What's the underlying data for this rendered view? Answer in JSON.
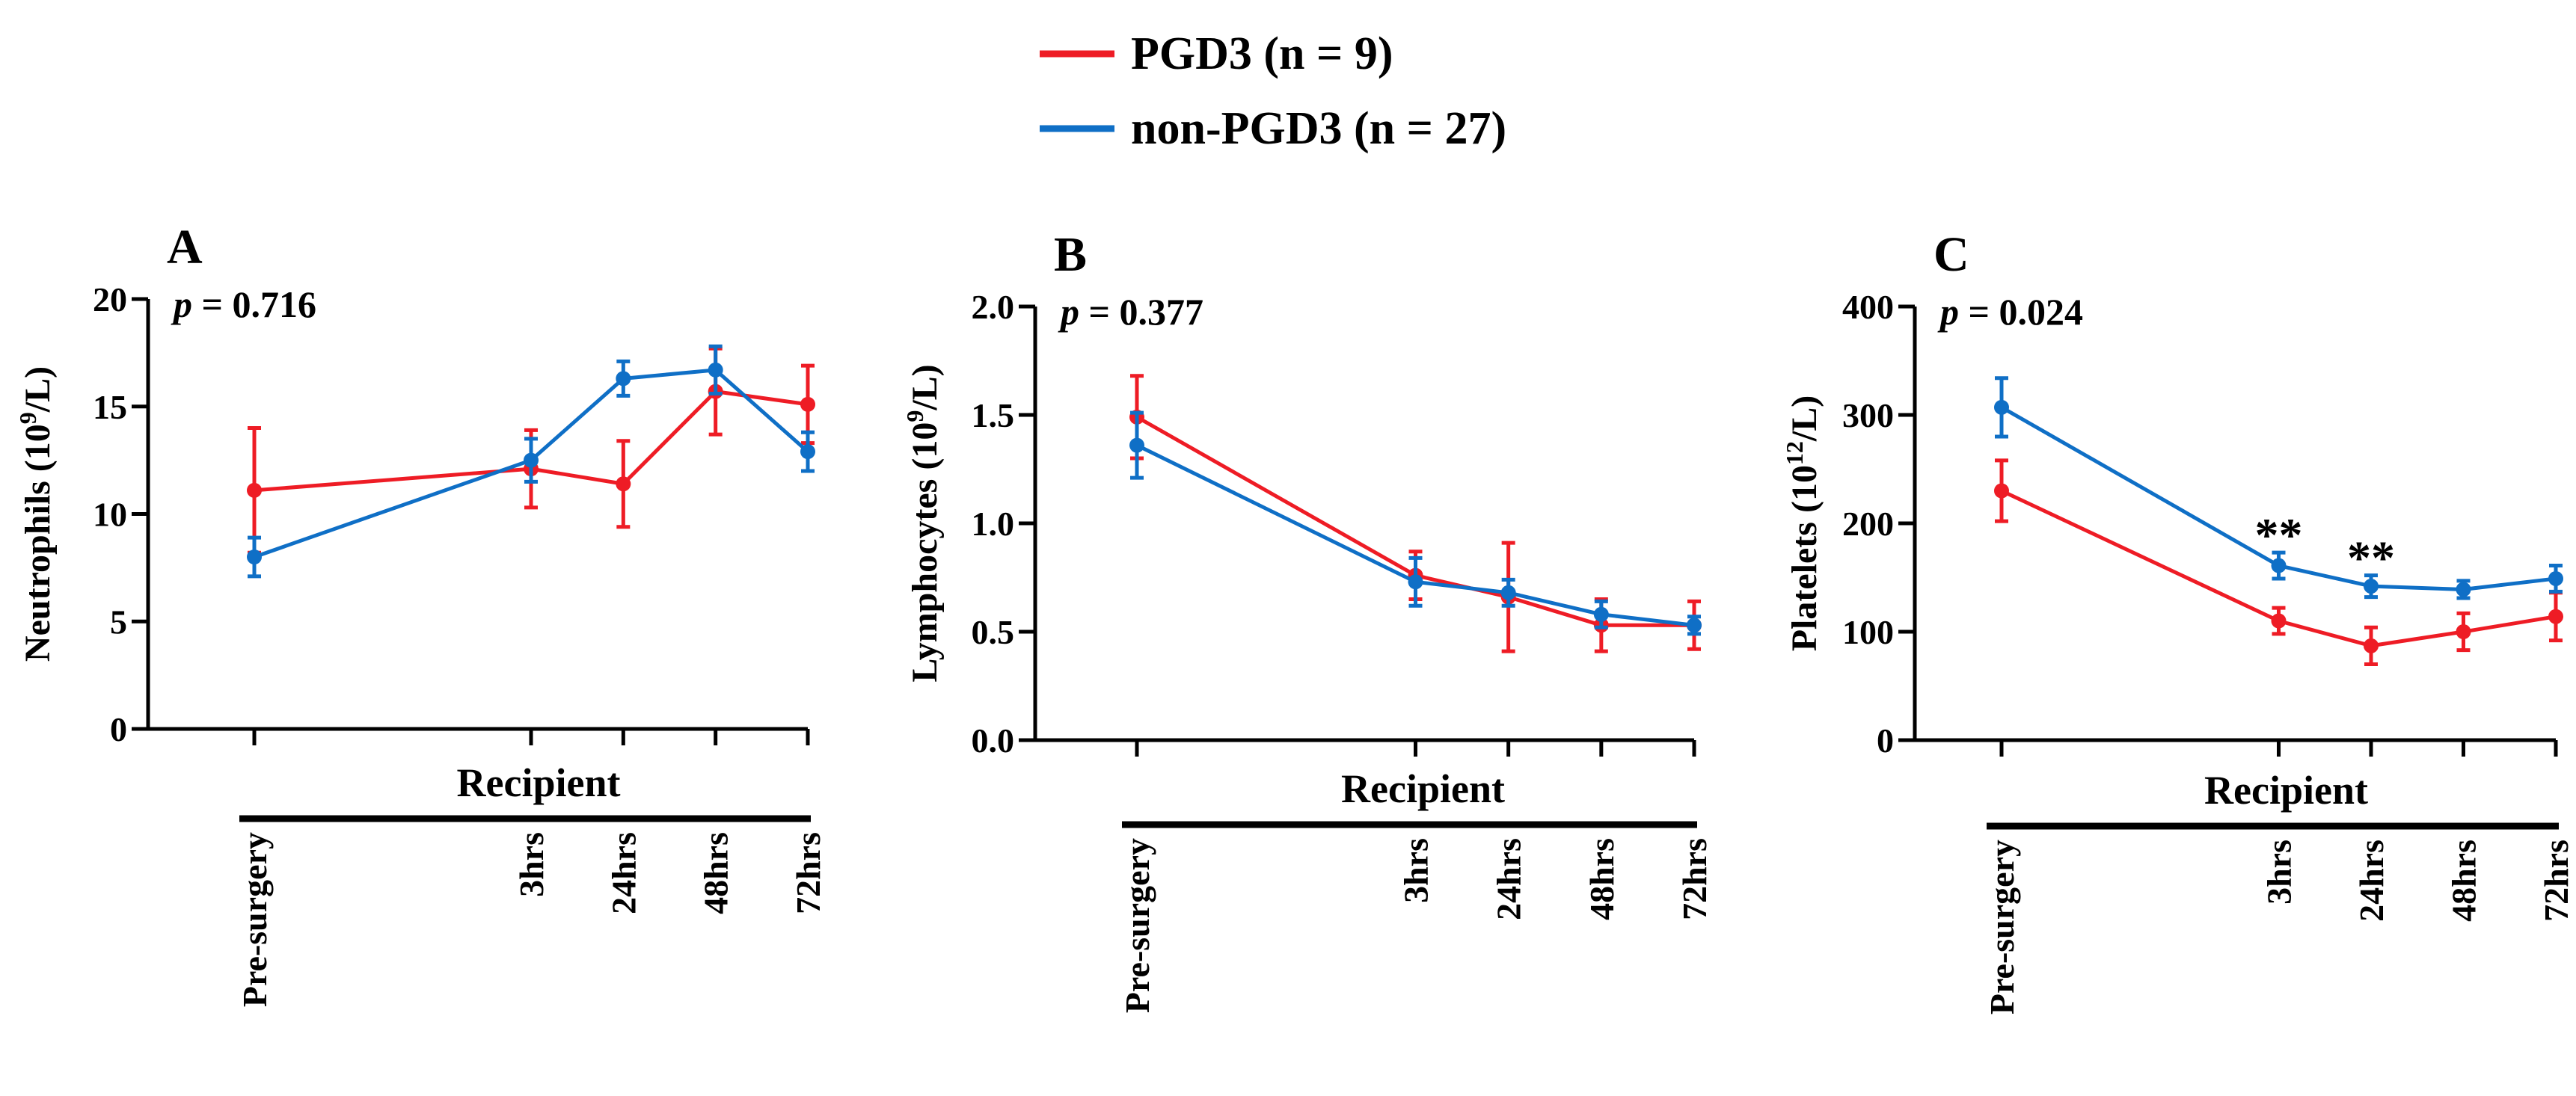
{
  "legend": {
    "position": "top-center",
    "entries": [
      {
        "label": "PGD3 (n = 9)",
        "color": "#ee1c25"
      },
      {
        "label": "non-PGD3 (n = 27)",
        "color": "#0f6fc6"
      }
    ]
  },
  "chart_data": [
    {
      "type": "line",
      "panel": "A",
      "p_label": "p",
      "p_value": "= 0.716",
      "ylabel_main": "Neutrophils (10",
      "ylabel_sup": "9",
      "ylabel_end": "/L)",
      "xgroup_label": "Recipient",
      "ylim": [
        0,
        20
      ],
      "yticks": [
        "0",
        "5",
        "10",
        "15",
        "20"
      ],
      "categories": [
        "Pre-surgery",
        "3hrs",
        "24hrs",
        "48hrs",
        "72hrs"
      ],
      "x": [
        0,
        3,
        4,
        5,
        6
      ],
      "series": [
        {
          "name": "PGD3 (n = 9)",
          "color": "#ee1c25",
          "values": [
            11.1,
            12.1,
            11.4,
            15.7,
            15.1
          ],
          "errors": [
            2.9,
            1.8,
            2.0,
            2.0,
            1.8
          ]
        },
        {
          "name": "non-PGD3 (n = 27)",
          "color": "#0f6fc6",
          "values": [
            8.0,
            12.5,
            16.3,
            16.7,
            12.9
          ],
          "errors": [
            0.9,
            1.0,
            0.8,
            1.1,
            0.9
          ]
        }
      ],
      "significance": []
    },
    {
      "type": "line",
      "panel": "B",
      "p_label": "p",
      "p_value": "= 0.377",
      "ylabel_main": "Lymphocytes (10",
      "ylabel_sup": "9",
      "ylabel_end": "/L)",
      "xgroup_label": "Recipient",
      "ylim": [
        0,
        2
      ],
      "yticks": [
        "0.0",
        "0.5",
        "1.0",
        "1.5",
        "2.0"
      ],
      "categories": [
        "Pre-surgery",
        "3hrs",
        "24hrs",
        "48hrs",
        "72hrs"
      ],
      "x": [
        0,
        3,
        4,
        5,
        6
      ],
      "series": [
        {
          "name": "PGD3 (n = 9)",
          "color": "#ee1c25",
          "values": [
            1.49,
            0.76,
            0.66,
            0.53,
            0.53
          ],
          "errors": [
            0.19,
            0.11,
            0.25,
            0.12,
            0.11
          ]
        },
        {
          "name": "non-PGD3 (n = 27)",
          "color": "#0f6fc6",
          "values": [
            1.36,
            0.73,
            0.68,
            0.58,
            0.53
          ],
          "errors": [
            0.15,
            0.11,
            0.06,
            0.06,
            0.04
          ]
        }
      ],
      "significance": []
    },
    {
      "type": "line",
      "panel": "C",
      "p_label": "p",
      "p_value": "= 0.024",
      "ylabel_main": "Platelets (10",
      "ylabel_sup": "12",
      "ylabel_end": "/L)",
      "xgroup_label": "Recipient",
      "ylim": [
        0,
        400
      ],
      "yticks": [
        "0",
        "100",
        "200",
        "300",
        "400"
      ],
      "categories": [
        "Pre-surgery",
        "3hrs",
        "24hrs",
        "48hrs",
        "72hrs"
      ],
      "x": [
        0,
        3,
        4,
        5,
        6
      ],
      "series": [
        {
          "name": "PGD3 (n = 9)",
          "color": "#ee1c25",
          "values": [
            230,
            110,
            87,
            100,
            114
          ],
          "errors": [
            28,
            12,
            17,
            17,
            22
          ]
        },
        {
          "name": "non-PGD3 (n = 27)",
          "color": "#0f6fc6",
          "values": [
            307,
            161,
            142,
            139,
            149
          ],
          "errors": [
            27,
            12,
            10,
            8,
            12
          ]
        }
      ],
      "significance": [
        {
          "category": "3hrs",
          "label": "**"
        },
        {
          "category": "24hrs",
          "label": "**"
        }
      ]
    }
  ]
}
